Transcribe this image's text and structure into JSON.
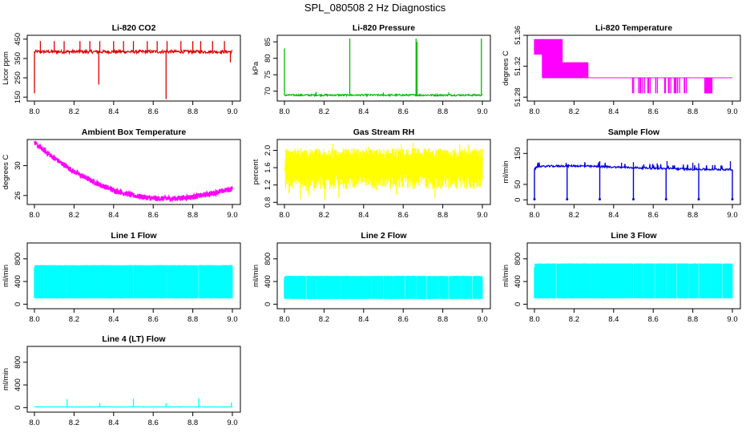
{
  "figure_title": "SPL_080508  2 Hz Diagnostics",
  "colors": {
    "red": "#dd0000",
    "green": "#00bb00",
    "magenta": "#ff00ff",
    "yellow": "#ffff00",
    "blue": "#0000dd",
    "cyan": "#00ffff"
  },
  "chart_data": [
    {
      "type": "line",
      "title": "Li-820 CO2",
      "ylabel": "Licor ppm",
      "xlim": [
        8.0,
        9.0
      ],
      "ylim": [
        130,
        470
      ],
      "xticks": [
        "8.0",
        "8.2",
        "8.4",
        "8.6",
        "8.8",
        "9.0"
      ],
      "yticks": [
        "150",
        "250",
        "350",
        "450"
      ],
      "color": "red",
      "series": [
        {
          "name": "CO2",
          "baseline": 385,
          "noise": 8,
          "spikes": [
            [
              8.0,
              170
            ],
            [
              8.03,
              440
            ],
            [
              8.1,
              440
            ],
            [
              8.15,
              440
            ],
            [
              8.23,
              440
            ],
            [
              8.28,
              440
            ],
            [
              8.325,
              215
            ],
            [
              8.33,
              440
            ],
            [
              8.4,
              440
            ],
            [
              8.45,
              440
            ],
            [
              8.5,
              440
            ],
            [
              8.57,
              440
            ],
            [
              8.62,
              440
            ],
            [
              8.665,
              140
            ],
            [
              8.67,
              440
            ],
            [
              8.74,
              440
            ],
            [
              8.8,
              440
            ],
            [
              8.84,
              440
            ],
            [
              8.9,
              440
            ],
            [
              8.96,
              440
            ],
            [
              8.99,
              330
            ]
          ]
        }
      ]
    },
    {
      "type": "line",
      "title": "Li-820 Pressure",
      "ylabel": "kPa",
      "xlim": [
        8.0,
        9.0
      ],
      "ylim": [
        67,
        87
      ],
      "xticks": [
        "8.0",
        "8.2",
        "8.4",
        "8.6",
        "8.8",
        "9.0"
      ],
      "yticks": [
        "70",
        "75",
        "80",
        "85"
      ],
      "color": "green",
      "series": [
        {
          "name": "Pressure",
          "baseline": 68.8,
          "noise": 0.25,
          "spikes": [
            [
              8.0,
              83
            ],
            [
              8.33,
              86
            ],
            [
              8.665,
              86
            ],
            [
              8.67,
              85
            ],
            [
              8.995,
              86
            ],
            [
              8.16,
              69.8
            ],
            [
              8.5,
              69.6
            ],
            [
              8.83,
              69.6
            ]
          ]
        }
      ]
    },
    {
      "type": "line",
      "title": "Li-820 Temperature",
      "ylabel": "degrees C",
      "xlim": [
        8.0,
        9.0
      ],
      "ylim": [
        51.275,
        51.36
      ],
      "xticks": [
        "8.0",
        "8.2",
        "8.4",
        "8.6",
        "8.8",
        "9.0"
      ],
      "yticks": [
        "51.28",
        "51.32",
        "51.36"
      ],
      "color": "magenta",
      "series": [
        {
          "name": "Temperature",
          "levels": [
            51.285,
            51.295,
            51.305,
            51.315,
            51.325,
            51.335,
            51.345,
            51.355
          ],
          "segments": [
            [
              8.0,
              8.04,
              51.335,
              51.355
            ],
            [
              8.04,
              8.14,
              51.305,
              51.355
            ],
            [
              8.14,
              8.27,
              51.305,
              51.325
            ],
            [
              8.27,
              9.0,
              51.305,
              51.305
            ]
          ],
          "dips": [
            [
              8.49,
              8.78,
              51.285
            ],
            [
              8.86,
              8.9,
              51.285
            ]
          ]
        }
      ]
    },
    {
      "type": "line",
      "title": "Ambient Box Temperature",
      "ylabel": "degrees C",
      "xlim": [
        8.0,
        9.0
      ],
      "ylim": [
        24.8,
        33.5
      ],
      "xticks": [
        "8.0",
        "8.2",
        "8.4",
        "8.6",
        "8.8",
        "9.0"
      ],
      "yticks": [
        "26",
        "30"
      ],
      "color": "magenta",
      "series": [
        {
          "name": "Ambient",
          "curve": [
            [
              8.0,
              33.0
            ],
            [
              8.1,
              31.0
            ],
            [
              8.2,
              29.2
            ],
            [
              8.3,
              27.8
            ],
            [
              8.4,
              26.7
            ],
            [
              8.5,
              26.0
            ],
            [
              8.6,
              25.6
            ],
            [
              8.7,
              25.6
            ],
            [
              8.8,
              25.8
            ],
            [
              8.9,
              26.3
            ],
            [
              9.0,
              26.9
            ]
          ],
          "noise": 0.35
        }
      ]
    },
    {
      "type": "line",
      "title": "Gas Stream RH",
      "ylabel": "percent",
      "xlim": [
        8.0,
        9.0
      ],
      "ylim": [
        0.75,
        2.25
      ],
      "xticks": [
        "8.0",
        "8.2",
        "8.4",
        "8.6",
        "8.8",
        "9.0"
      ],
      "yticks": [
        "0.8",
        "1.2",
        "1.6",
        "2.0"
      ],
      "color": "yellow",
      "series": [
        {
          "name": "RH",
          "high": 2.05,
          "low": 1.1,
          "start": 1.6
        }
      ]
    },
    {
      "type": "line",
      "title": "Sample Flow",
      "ylabel": "ml/min",
      "xlim": [
        8.0,
        9.0
      ],
      "ylim": [
        -15,
        195
      ],
      "xticks": [
        "8.0",
        "8.2",
        "8.4",
        "8.6",
        "8.8",
        "9.0"
      ],
      "yticks": [
        "0",
        "50",
        "150"
      ],
      "color": "blue",
      "series": [
        {
          "name": "Flow",
          "curve": [
            [
              8.0,
              100
            ],
            [
              8.02,
              108
            ],
            [
              8.2,
              110
            ],
            [
              8.4,
              106
            ],
            [
              8.6,
              102
            ],
            [
              8.8,
              99
            ],
            [
              9.0,
              98
            ]
          ],
          "noise": 3,
          "drops": [
            8.0,
            8.165,
            8.33,
            8.5,
            8.665,
            8.83,
            9.0
          ],
          "drop_to": 2,
          "spikes": [
            [
              8.16,
              120
            ],
            [
              8.33,
              125
            ],
            [
              8.44,
              120
            ],
            [
              8.5,
              122
            ],
            [
              8.62,
              118
            ],
            [
              8.67,
              125
            ],
            [
              8.8,
              120
            ],
            [
              8.83,
              118
            ],
            [
              8.9,
              112
            ],
            [
              8.99,
              125
            ]
          ]
        }
      ]
    },
    {
      "type": "area",
      "title": "Line 1 Flow",
      "ylabel": "ml/min",
      "xlim": [
        8.0,
        9.0
      ],
      "ylim": [
        -80,
        1080
      ],
      "xticks": [
        "8.0",
        "8.2",
        "8.4",
        "8.6",
        "8.8",
        "9.0"
      ],
      "yticks": [
        "0",
        "400",
        "800"
      ],
      "color": "cyan",
      "series": [
        {
          "name": "Line 1",
          "top": 690,
          "bottom": 100,
          "gaps": [
            8.165,
            8.33,
            8.5,
            8.665,
            8.83
          ],
          "start_level": 650
        }
      ]
    },
    {
      "type": "area",
      "title": "Line 2 Flow",
      "ylabel": "ml/min",
      "xlim": [
        8.0,
        9.0
      ],
      "ylim": [
        -80,
        1080
      ],
      "xticks": [
        "8.0",
        "8.2",
        "8.4",
        "8.6",
        "8.8",
        "9.0"
      ],
      "yticks": [
        "0",
        "400",
        "800"
      ],
      "color": "cyan",
      "series": [
        {
          "name": "Line 2",
          "top": 500,
          "bottom": 90,
          "gaps": [
            8.11,
            8.165,
            8.28,
            8.33,
            8.44,
            8.5,
            8.55,
            8.61,
            8.665,
            8.72,
            8.78,
            8.83,
            8.89,
            8.95
          ],
          "start_level": 470
        }
      ]
    },
    {
      "type": "area",
      "title": "Line 3 Flow",
      "ylabel": "ml/min",
      "xlim": [
        8.0,
        9.0
      ],
      "ylim": [
        -80,
        1080
      ],
      "xticks": [
        "8.0",
        "8.2",
        "8.4",
        "8.6",
        "8.8",
        "9.0"
      ],
      "yticks": [
        "0",
        "400",
        "800"
      ],
      "color": "cyan",
      "series": [
        {
          "name": "Line 3",
          "top": 720,
          "bottom": 100,
          "gaps": [
            8.11,
            8.165,
            8.28,
            8.33,
            8.5,
            8.55,
            8.61,
            8.665,
            8.72,
            8.78,
            8.83,
            8.89,
            8.95
          ],
          "start_level": 650
        }
      ]
    },
    {
      "type": "line",
      "title": "Line 4 (LT) Flow",
      "ylabel": "ml/min",
      "xlim": [
        8.0,
        9.0
      ],
      "ylim": [
        -80,
        1080
      ],
      "xticks": [
        "8.0",
        "8.2",
        "8.4",
        "8.6",
        "8.8",
        "9.0"
      ],
      "yticks": [
        "0",
        "400",
        "800"
      ],
      "color": "cyan",
      "series": [
        {
          "name": "Line 4",
          "baseline": 12,
          "noise": 4,
          "spikes": [
            [
              8.165,
              150
            ],
            [
              8.33,
              80
            ],
            [
              8.5,
              160
            ],
            [
              8.665,
              80
            ],
            [
              8.83,
              160
            ],
            [
              8.995,
              90
            ]
          ]
        }
      ]
    }
  ]
}
